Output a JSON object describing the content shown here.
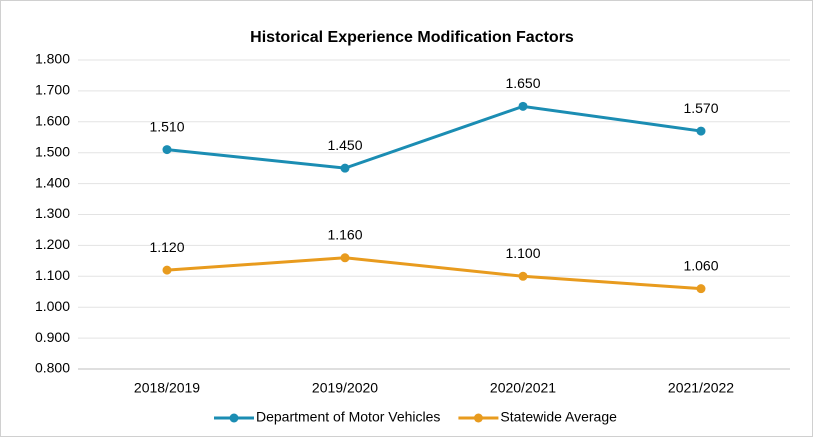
{
  "chart_data": {
    "type": "line",
    "title": "Historical Experience Modification Factors",
    "categories": [
      "2018/2019",
      "2019/2020",
      "2020/2021",
      "2021/2022"
    ],
    "series": [
      {
        "name": "Department of Motor Vehicles",
        "color": "#1b8db3",
        "values": [
          1.51,
          1.45,
          1.65,
          1.57
        ],
        "value_labels": [
          "1.510",
          "1.450",
          "1.650",
          "1.570"
        ]
      },
      {
        "name": "Statewide Average",
        "color": "#e89b1e",
        "values": [
          1.12,
          1.16,
          1.1,
          1.06
        ],
        "value_labels": [
          "1.120",
          "1.160",
          "1.100",
          "1.060"
        ]
      }
    ],
    "ylim": [
      0.8,
      1.8
    ],
    "yticks": [
      {
        "value": 0.8,
        "label": "0.800"
      },
      {
        "value": 0.9,
        "label": "0.900"
      },
      {
        "value": 1.0,
        "label": "1.000"
      },
      {
        "value": 1.1,
        "label": "1.100"
      },
      {
        "value": 1.2,
        "label": "1.200"
      },
      {
        "value": 1.3,
        "label": "1.300"
      },
      {
        "value": 1.4,
        "label": "1.400"
      },
      {
        "value": 1.5,
        "label": "1.500"
      },
      {
        "value": 1.6,
        "label": "1.600"
      },
      {
        "value": 1.7,
        "label": "1.700"
      },
      {
        "value": 1.8,
        "label": "1.800"
      }
    ],
    "grid": true,
    "legend": "bottom"
  }
}
